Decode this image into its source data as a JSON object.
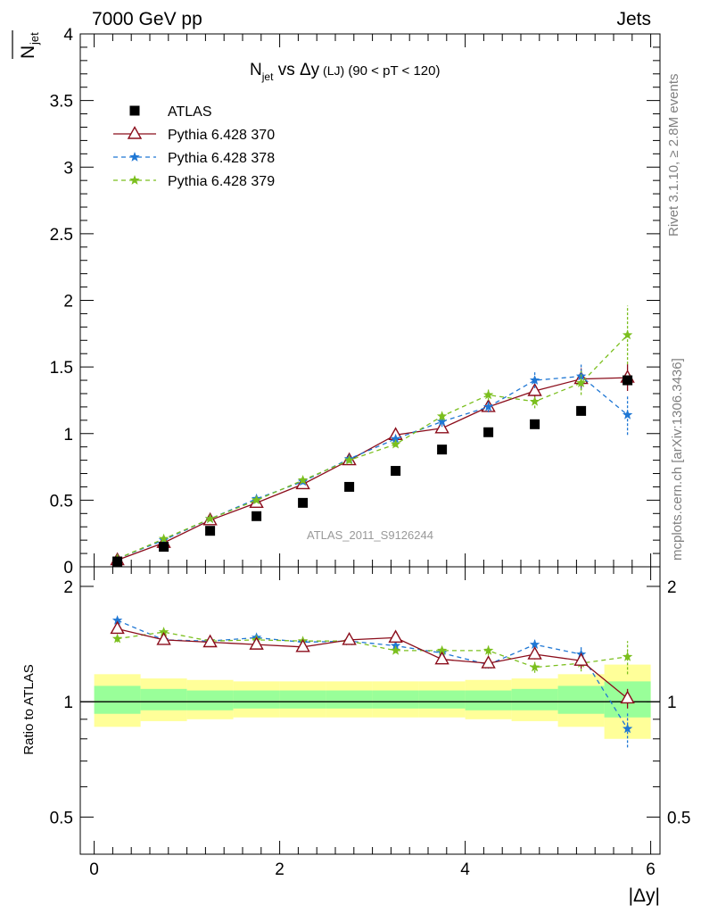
{
  "header": {
    "left": "7000 GeV pp",
    "right": "Jets"
  },
  "side_labels": {
    "rivet": "Rivet 3.1.10, ≥ 2.8M events",
    "mcplots": "mcplots.cern.ch [arXiv:1306.3436]"
  },
  "watermark": "ATLAS_2011_S9126244",
  "title": {
    "n": "N",
    "sub": "jet",
    "rest": " vs Δy",
    "small": " (LJ)",
    "cut": " (90 < pT < 120)"
  },
  "colors": {
    "atlas": "#000000",
    "py370": "#8b0d1b",
    "py378": "#1f77d4",
    "py379": "#7bbf1e",
    "band_outer": "#ffff99",
    "band_inner": "#99ff99"
  },
  "chart_data": [
    {
      "type": "scatter",
      "panel": "main",
      "title": "N_jet vs Δy (LJ) (90 < pT < 120)",
      "ylabel": "N_jet",
      "xlim": [
        -0.15,
        6.1
      ],
      "ylim": [
        0,
        4
      ],
      "yticks": [
        "0",
        "0.5",
        "1",
        "1.5",
        "2",
        "2.5",
        "3",
        "3.5",
        "4"
      ],
      "legend_position": "top-left",
      "x": [
        0.25,
        0.75,
        1.25,
        1.75,
        2.25,
        2.75,
        3.25,
        3.75,
        4.25,
        4.75,
        5.25,
        5.75
      ],
      "series": [
        {
          "name": "ATLAS",
          "marker": "square",
          "values": [
            0.04,
            0.15,
            0.27,
            0.38,
            0.48,
            0.6,
            0.72,
            0.88,
            1.01,
            1.07,
            1.17,
            1.4
          ]
        },
        {
          "name": "Pythia 6.428 370",
          "marker": "triangle",
          "line": "solid",
          "values": [
            0.05,
            0.18,
            0.35,
            0.48,
            0.62,
            0.8,
            0.99,
            1.04,
            1.2,
            1.32,
            1.41,
            1.42
          ],
          "errors": [
            0.01,
            0.01,
            0.01,
            0.01,
            0.02,
            0.02,
            0.02,
            0.03,
            0.04,
            0.05,
            0.08,
            0.1
          ]
        },
        {
          "name": "Pythia 6.428 378",
          "marker": "star",
          "line": "dashed",
          "values": [
            0.06,
            0.2,
            0.36,
            0.51,
            0.64,
            0.81,
            0.96,
            1.09,
            1.2,
            1.4,
            1.43,
            1.14
          ],
          "errors": [
            0.01,
            0.01,
            0.01,
            0.01,
            0.02,
            0.02,
            0.03,
            0.04,
            0.04,
            0.06,
            0.1,
            0.15
          ]
        },
        {
          "name": "Pythia 6.428 379",
          "marker": "star",
          "line": "dashed",
          "values": [
            0.06,
            0.21,
            0.36,
            0.5,
            0.65,
            0.8,
            0.92,
            1.13,
            1.29,
            1.24,
            1.38,
            1.74
          ],
          "errors": [
            0.01,
            0.01,
            0.01,
            0.01,
            0.02,
            0.02,
            0.02,
            0.03,
            0.04,
            0.05,
            0.09,
            0.22
          ]
        }
      ]
    },
    {
      "type": "scatter",
      "panel": "ratio",
      "ylabel": "Ratio to ATLAS",
      "xlabel": "|Δy|",
      "xlim": [
        -0.15,
        6.1
      ],
      "ylim": [
        0.4,
        2.25
      ],
      "log_y": true,
      "xticks": [
        "0",
        "2",
        "4",
        "6"
      ],
      "yticks": [
        "0.5",
        "1",
        "2"
      ],
      "bin_edges": [
        0,
        0.5,
        1.0,
        1.5,
        2.0,
        2.5,
        3.0,
        3.5,
        4.0,
        4.5,
        5.0,
        5.5,
        6.0
      ],
      "band_outer": {
        "low": [
          0.86,
          0.89,
          0.9,
          0.91,
          0.91,
          0.91,
          0.91,
          0.91,
          0.9,
          0.89,
          0.86,
          0.8
        ],
        "high": [
          1.18,
          1.15,
          1.14,
          1.13,
          1.13,
          1.13,
          1.13,
          1.13,
          1.14,
          1.15,
          1.18,
          1.25
        ]
      },
      "band_inner": {
        "low": [
          0.93,
          0.95,
          0.95,
          0.96,
          0.96,
          0.96,
          0.96,
          0.96,
          0.95,
          0.95,
          0.93,
          0.91
        ],
        "high": [
          1.1,
          1.08,
          1.07,
          1.07,
          1.07,
          1.07,
          1.07,
          1.07,
          1.07,
          1.08,
          1.1,
          1.13
        ]
      },
      "x": [
        0.25,
        0.75,
        1.25,
        1.75,
        2.25,
        2.75,
        3.25,
        3.75,
        4.25,
        4.75,
        5.25,
        5.75
      ],
      "series": [
        {
          "name": "Pythia 6.428 370",
          "values": [
            1.55,
            1.45,
            1.43,
            1.41,
            1.39,
            1.45,
            1.47,
            1.29,
            1.26,
            1.33,
            1.28,
            1.02
          ],
          "errors": [
            0.03,
            0.02,
            0.02,
            0.02,
            0.02,
            0.02,
            0.02,
            0.03,
            0.03,
            0.04,
            0.06,
            0.06
          ]
        },
        {
          "name": "Pythia 6.428 378",
          "values": [
            1.63,
            1.45,
            1.44,
            1.47,
            1.43,
            1.44,
            1.4,
            1.34,
            1.25,
            1.41,
            1.33,
            0.85
          ],
          "errors": [
            0.04,
            0.02,
            0.02,
            0.02,
            0.02,
            0.02,
            0.03,
            0.03,
            0.03,
            0.04,
            0.07,
            0.09
          ]
        },
        {
          "name": "Pythia 6.428 379",
          "values": [
            1.46,
            1.52,
            1.44,
            1.45,
            1.44,
            1.44,
            1.36,
            1.36,
            1.36,
            1.23,
            1.26,
            1.31
          ],
          "errors": [
            0.03,
            0.03,
            0.02,
            0.02,
            0.02,
            0.02,
            0.02,
            0.03,
            0.04,
            0.04,
            0.06,
            0.13
          ]
        }
      ]
    }
  ]
}
